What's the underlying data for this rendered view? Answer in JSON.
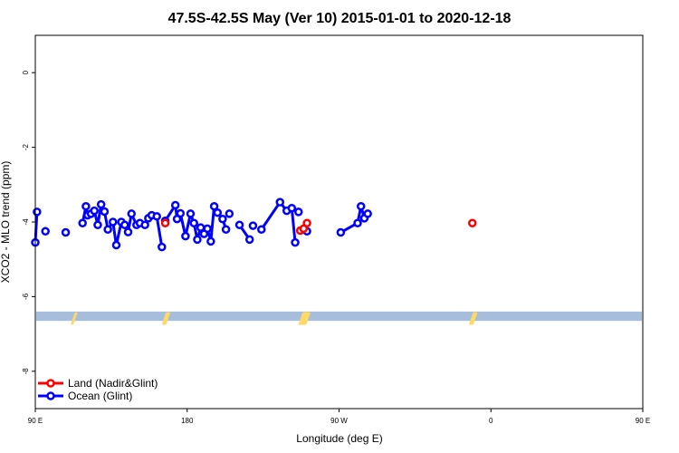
{
  "chart_data": {
    "type": "line",
    "title": "47.5S-42.5S May (Ver 10)   2015-01-01 to 2020-12-18",
    "xlabel": "Longitude (deg E)",
    "ylabel": "XCO2 - MLO trend (ppm)",
    "xlim": [
      90,
      450
    ],
    "ylim": [
      -9.0,
      1.0
    ],
    "x_ticks": [
      {
        "value": 90,
        "label": "90 E"
      },
      {
        "value": 180,
        "label": "180"
      },
      {
        "value": 270,
        "label": "90 W"
      },
      {
        "value": 360,
        "label": "0"
      },
      {
        "value": 450,
        "label": "90 E"
      },
      {
        "value": 540,
        "label": "180"
      }
    ],
    "y_ticks": [
      {
        "value": 0,
        "label": "0"
      },
      {
        "value": -2,
        "label": "-2"
      },
      {
        "value": -4,
        "label": "-4"
      },
      {
        "value": -6,
        "label": "-6"
      },
      {
        "value": -8,
        "label": "-8"
      }
    ],
    "grid": false,
    "legend_position": "bottom-left",
    "series": [
      {
        "name": "Land (Nadir&Glint)",
        "color": "#ff0000",
        "points": [
          [
            167,
            -4.03
          ],
          [
            247,
            -4.23
          ],
          [
            249,
            -4.18
          ],
          [
            251,
            -4.03
          ],
          [
            349,
            -4.03
          ]
        ],
        "segments": [
          [
            0,
            0
          ],
          [
            1,
            3
          ],
          [
            4,
            4
          ]
        ]
      },
      {
        "name": "Ocean (Glint)",
        "color": "#0000ff",
        "points": [
          [
            90,
            -4.55
          ],
          [
            91,
            -3.73
          ],
          [
            96,
            -4.25
          ],
          [
            108,
            -4.28
          ],
          [
            118,
            -4.03
          ],
          [
            120,
            -3.58
          ],
          [
            121,
            -3.82
          ],
          [
            123,
            -3.78
          ],
          [
            125,
            -3.7
          ],
          [
            127,
            -4.08
          ],
          [
            129,
            -3.53
          ],
          [
            131,
            -3.72
          ],
          [
            133,
            -4.2
          ],
          [
            136,
            -4.0
          ],
          [
            138,
            -4.62
          ],
          [
            141,
            -4.0
          ],
          [
            143,
            -4.08
          ],
          [
            145,
            -4.27
          ],
          [
            147,
            -3.78
          ],
          [
            150,
            -4.08
          ],
          [
            152,
            -4.03
          ],
          [
            155,
            -4.08
          ],
          [
            157,
            -3.9
          ],
          [
            159,
            -3.82
          ],
          [
            162,
            -3.85
          ],
          [
            165,
            -4.67
          ],
          [
            167,
            -3.97
          ],
          [
            173,
            -3.55
          ],
          [
            174,
            -3.92
          ],
          [
            176,
            -3.77
          ],
          [
            179,
            -4.38
          ],
          [
            182,
            -3.78
          ],
          [
            184,
            -4.03
          ],
          [
            186,
            -4.47
          ],
          [
            188,
            -4.15
          ],
          [
            190,
            -4.32
          ],
          [
            192,
            -4.18
          ],
          [
            194,
            -4.52
          ],
          [
            196,
            -3.58
          ],
          [
            198,
            -3.75
          ],
          [
            201,
            -3.92
          ],
          [
            203,
            -4.2
          ],
          [
            205,
            -3.78
          ],
          [
            211,
            -4.08
          ],
          [
            217,
            -4.47
          ],
          [
            219,
            -4.1
          ],
          [
            224,
            -4.2
          ],
          [
            235,
            -3.47
          ],
          [
            239,
            -3.7
          ],
          [
            242,
            -3.63
          ],
          [
            244,
            -4.55
          ],
          [
            246,
            -3.73
          ],
          [
            251,
            -4.25
          ],
          [
            271,
            -4.28
          ],
          [
            281,
            -4.03
          ],
          [
            283,
            -3.58
          ],
          [
            285,
            -3.9
          ],
          [
            287,
            -3.78
          ]
        ],
        "segments": [
          [
            0,
            1
          ],
          [
            2,
            2
          ],
          [
            3,
            3
          ],
          [
            4,
            25
          ],
          [
            26,
            28
          ],
          [
            29,
            41
          ],
          [
            42,
            42
          ],
          [
            43,
            44
          ],
          [
            45,
            45
          ],
          [
            46,
            50
          ],
          [
            51,
            51
          ],
          [
            52,
            52
          ],
          [
            53,
            56
          ]
        ]
      }
    ],
    "bands": [
      {
        "y_from": -6.65,
        "y_to": -6.4,
        "color": "#a6bddb"
      }
    ],
    "band_markers": {
      "color": "#ffd966",
      "x": [
        113,
        167,
        168,
        248,
        249,
        250,
        251,
        349,
        350
      ]
    }
  }
}
